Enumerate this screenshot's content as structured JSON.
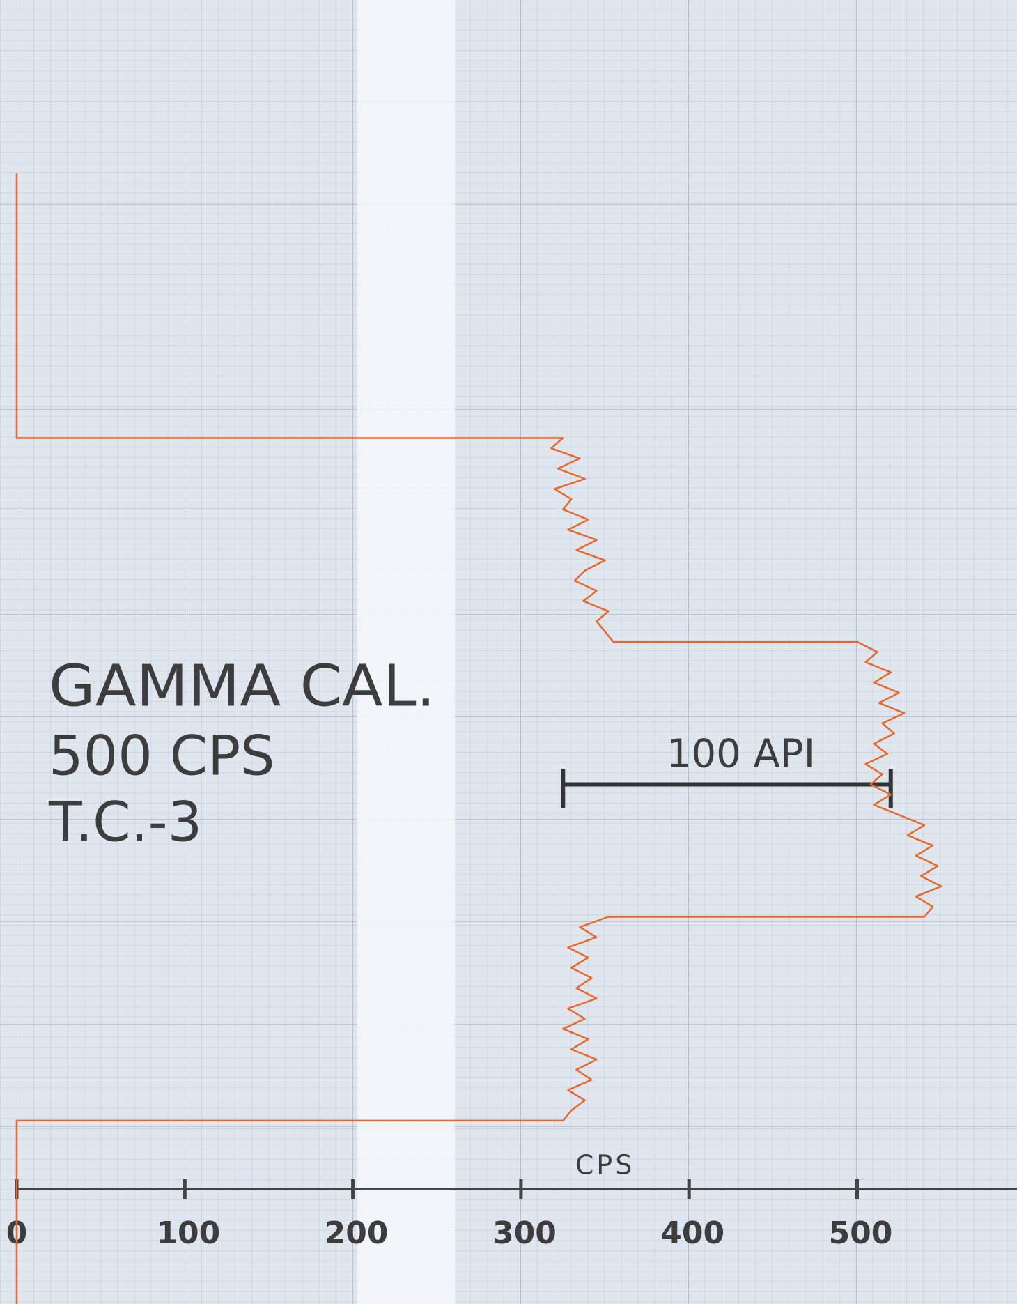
{
  "chart_data": {
    "type": "line",
    "title_lines": [
      "GAMMA CAL.",
      "500 CPS",
      "T.C.-3"
    ],
    "xlabel": "CPS",
    "xlim": [
      0,
      600
    ],
    "xticks": [
      0,
      100,
      200,
      300,
      400,
      500
    ],
    "ylim": [
      0,
      128
    ],
    "color": "#e8672a",
    "depth": [
      17,
      43,
      43,
      44,
      45,
      46,
      47,
      48,
      49,
      50,
      51,
      52,
      53,
      54,
      55,
      56,
      57,
      58,
      59,
      60,
      61,
      62,
      63,
      63,
      64,
      65,
      66,
      67,
      68,
      69,
      70,
      71,
      72,
      73,
      74,
      75,
      76,
      77,
      78,
      79,
      80,
      81,
      82,
      83,
      84,
      85,
      86,
      87,
      88,
      89,
      90,
      90,
      91,
      92,
      93,
      94,
      95,
      96,
      97,
      98,
      99,
      100,
      101,
      102,
      103,
      104,
      105,
      106,
      107,
      108,
      109,
      110,
      110,
      128
    ],
    "values": [
      0,
      0,
      325,
      318,
      335,
      322,
      338,
      320,
      330,
      325,
      340,
      328,
      345,
      333,
      350,
      338,
      332,
      345,
      337,
      352,
      345,
      350,
      355,
      500,
      512,
      505,
      520,
      510,
      525,
      513,
      528,
      515,
      522,
      510,
      518,
      505,
      515,
      508,
      520,
      510,
      525,
      540,
      530,
      545,
      535,
      548,
      538,
      550,
      535,
      545,
      540,
      352,
      335,
      345,
      328,
      340,
      330,
      342,
      333,
      345,
      328,
      338,
      325,
      340,
      330,
      345,
      333,
      342,
      328,
      338,
      330,
      325,
      0,
      0
    ],
    "api_scale": {
      "label": "100 API",
      "from": 325,
      "to": 520,
      "depth": 77
    }
  }
}
